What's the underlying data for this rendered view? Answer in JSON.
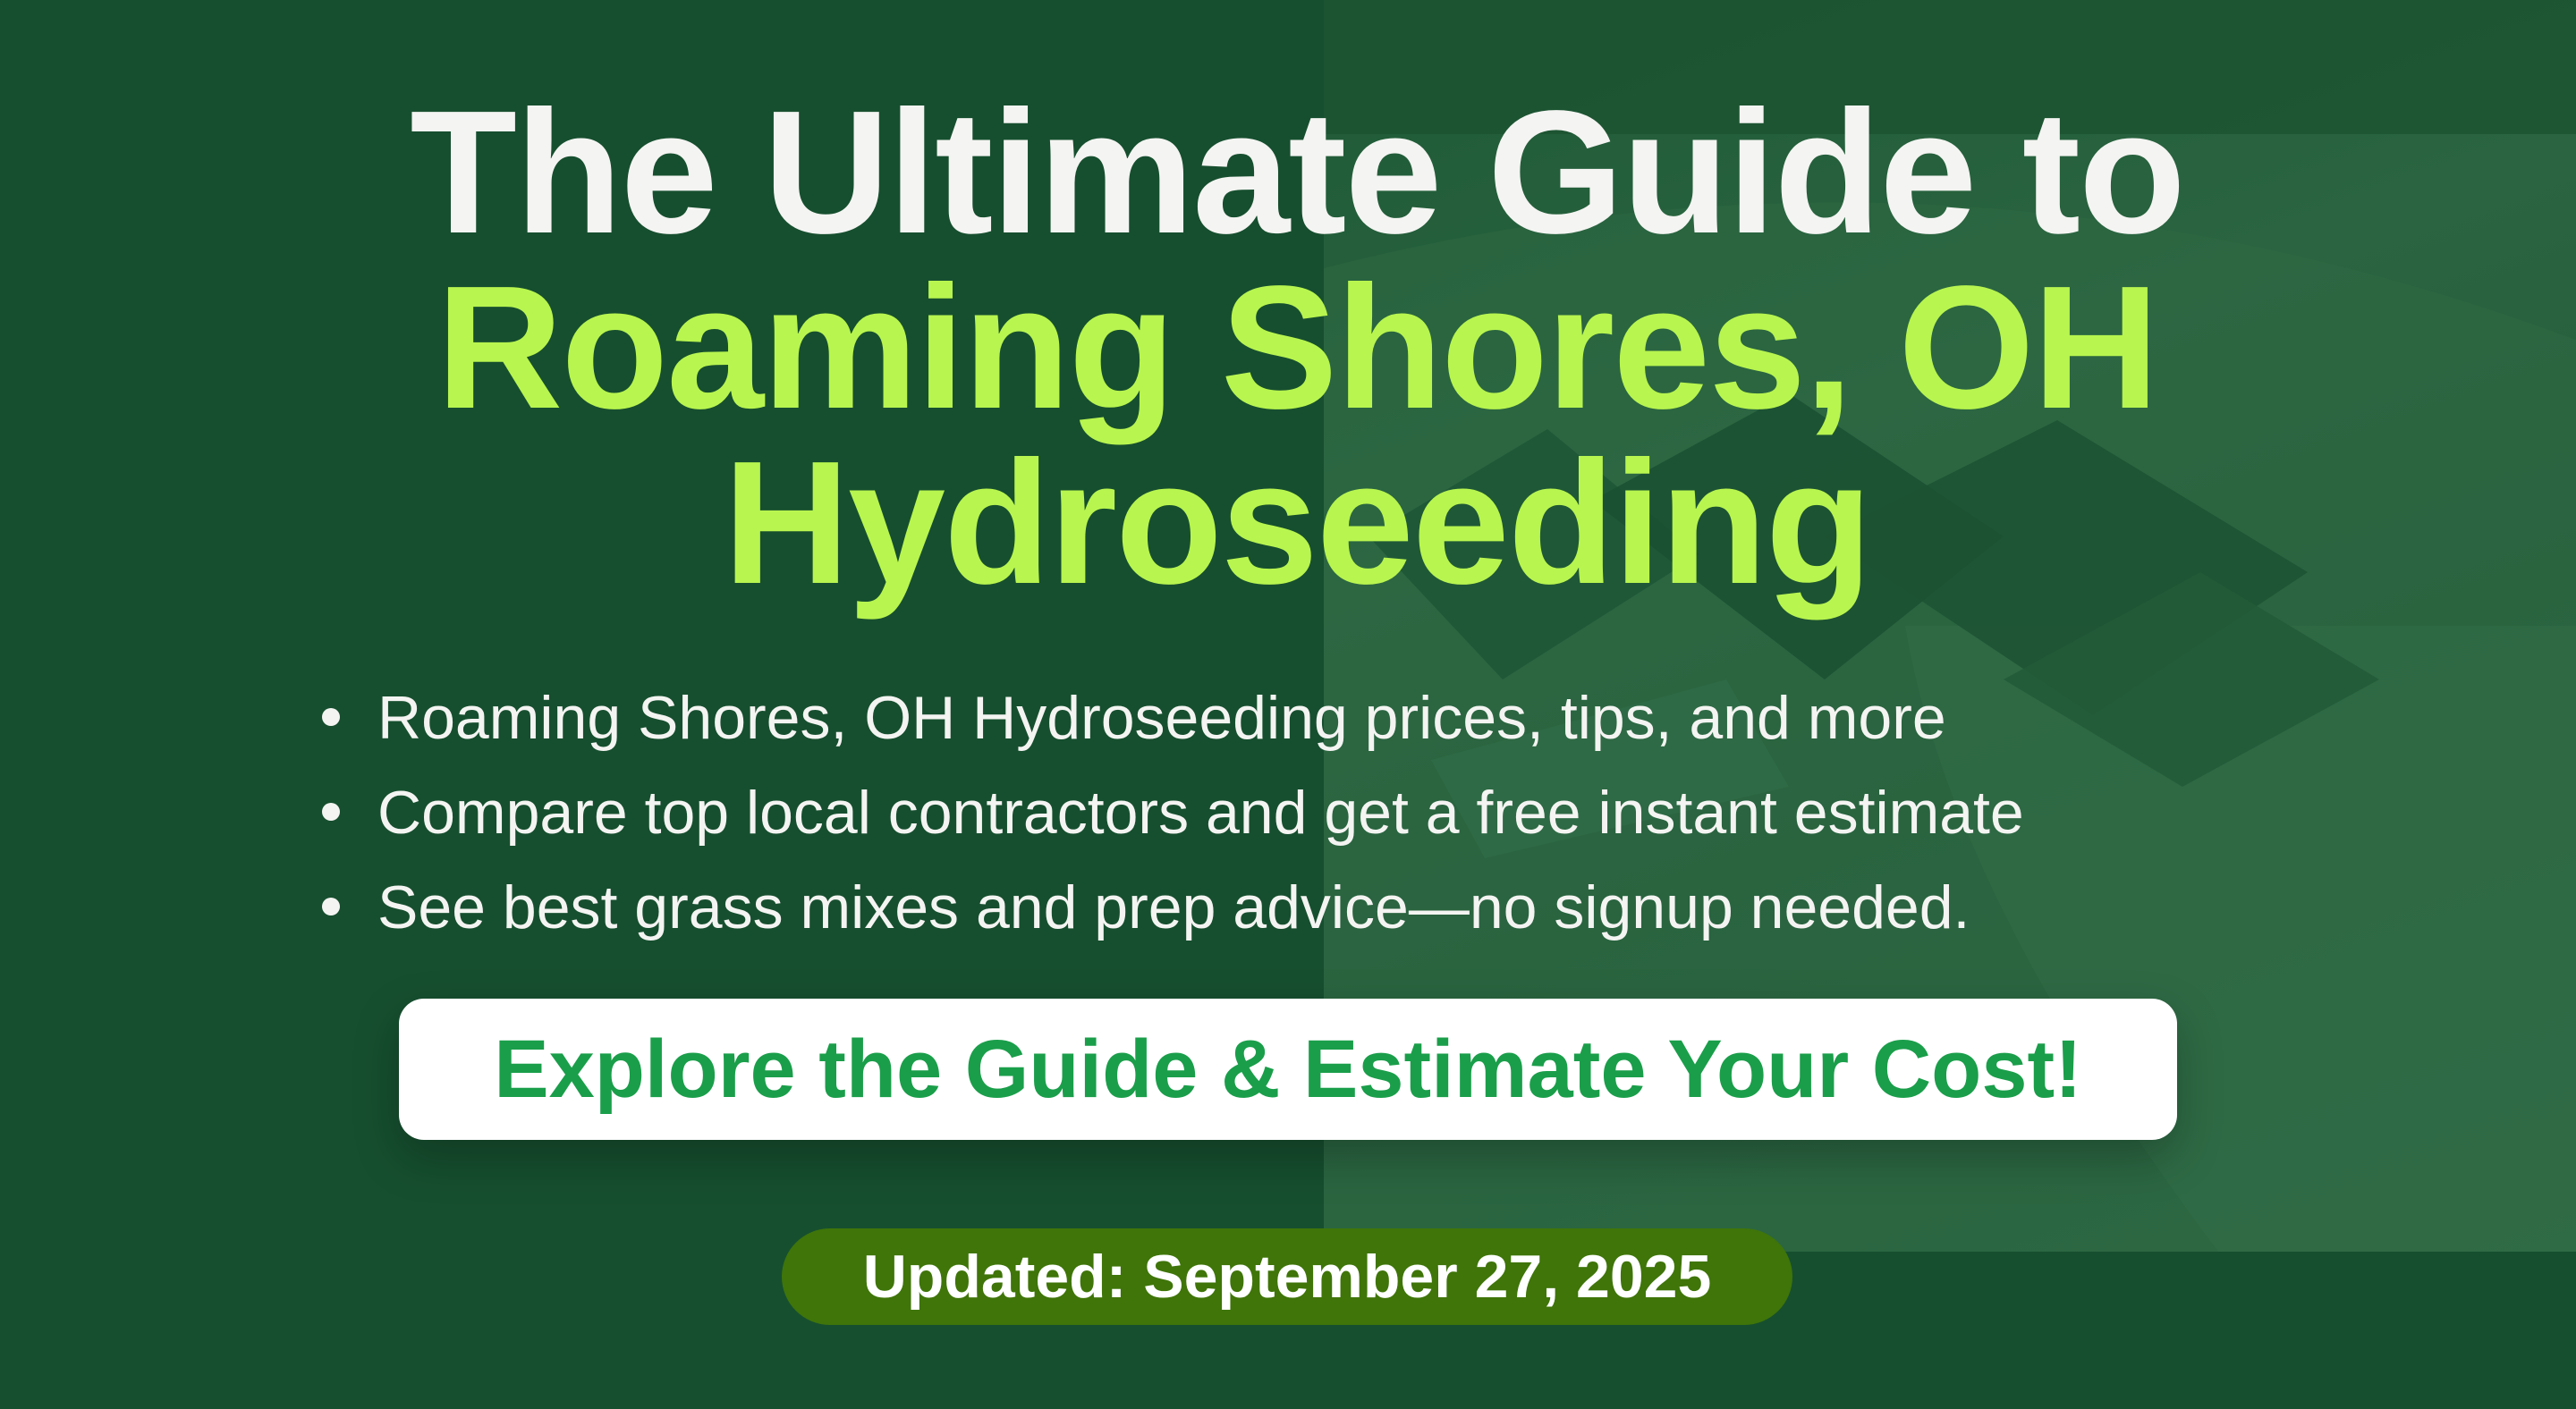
{
  "headline": {
    "line1": "The Ultimate Guide to",
    "line2": "Roaming Shores, OH",
    "line3": "Hydroseeding"
  },
  "bullets": [
    "Roaming Shores, OH Hydroseeding prices, tips, and more",
    "Compare top local contractors and get a free instant estimate",
    "See best grass mixes and prep advice—no signup needed."
  ],
  "cta": {
    "label": "Explore the Guide & Estimate Your Cost!"
  },
  "badge": {
    "label": "Updated: September 27, 2025"
  },
  "colors": {
    "background": "#164f2f",
    "headline_white": "#f4f4f2",
    "headline_accent": "#b8f54f",
    "cta_text": "#1a9e4a",
    "badge_bg": "#3f7509"
  }
}
